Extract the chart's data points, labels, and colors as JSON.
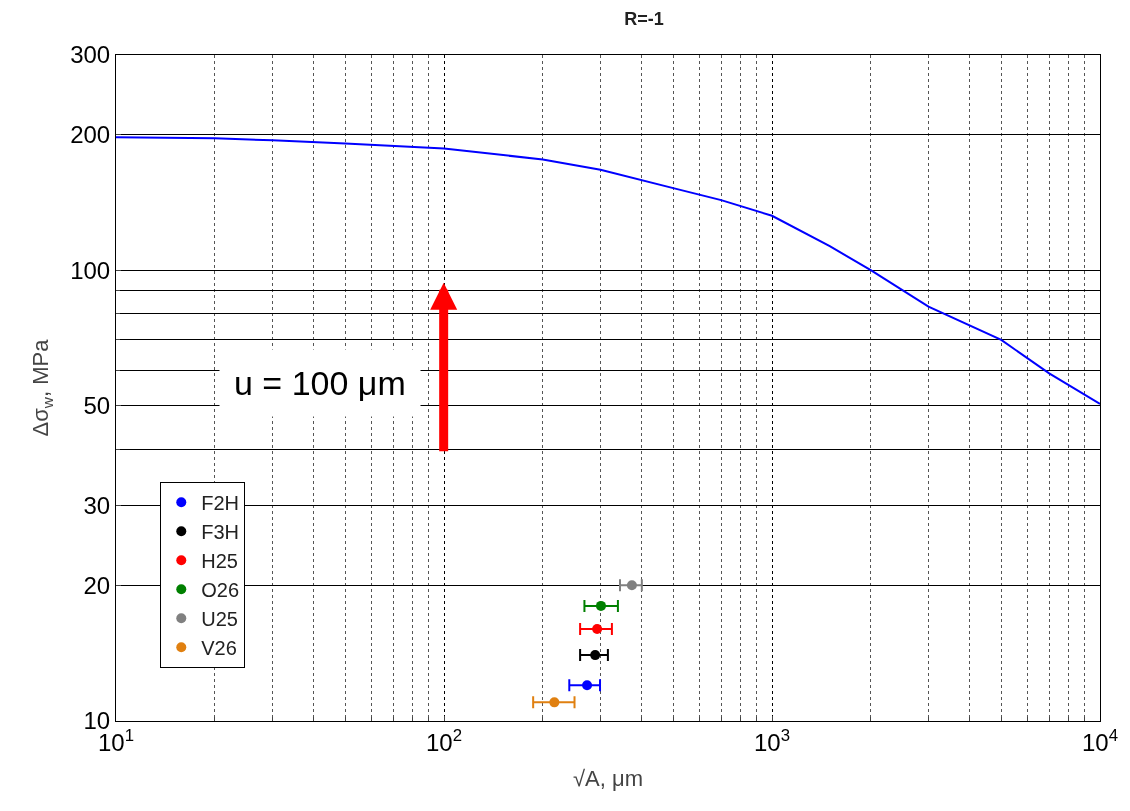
{
  "chart_data": {
    "type": "scatter",
    "title": "R=-1",
    "xlabel": "√A, μm",
    "ylabel": "Δσ$_{w}$, MPa",
    "log": "xy",
    "grid": true,
    "legend": "bottom left",
    "xlim": [
      10,
      10000
    ],
    "ylim": [
      10,
      300
    ],
    "xticks": [
      {
        "value": 10,
        "label": "10$^{1}$"
      },
      {
        "value": 100,
        "label": "10$^{2}$"
      },
      {
        "value": 1000,
        "label": "10$^{3}$"
      },
      {
        "value": 10000,
        "label": "10$^{4}$"
      }
    ],
    "yticks": [
      10,
      20,
      30,
      50,
      100,
      200,
      300
    ],
    "annotations": [
      "u = 100 μm"
    ],
    "series": [
      {
        "type": "line",
        "color": "#0000ff",
        "x": [
          10,
          20,
          30,
          50,
          100,
          200,
          300,
          500,
          700,
          1000,
          1500,
          2000,
          3000,
          5000,
          7000,
          10000
        ],
        "values": [
          197,
          196,
          194,
          191,
          186,
          176,
          167,
          152,
          143,
          132,
          113,
          100,
          83,
          70,
          59,
          50.5
        ]
      },
      {
        "name": "F2H",
        "color": "#0000ff",
        "marker": "circle",
        "x": [
          273
        ],
        "values": [
          12
        ],
        "xerrors": [
          [
            241,
            299
          ]
        ]
      },
      {
        "name": "F3H",
        "color": "#000000",
        "marker": "circle",
        "x": [
          289
        ],
        "values": [
          14
        ],
        "xerrors": [
          [
            260,
            316
          ]
        ]
      },
      {
        "name": "H25",
        "color": "#ff0000",
        "marker": "circle",
        "x": [
          293
        ],
        "values": [
          16
        ],
        "xerrors": [
          [
            260,
            325
          ]
        ]
      },
      {
        "name": "O26",
        "color": "#008000",
        "marker": "circle",
        "x": [
          301
        ],
        "values": [
          18
        ],
        "xerrors": [
          [
            268,
            339
          ]
        ]
      },
      {
        "name": "U25",
        "color": "#808080",
        "marker": "circle",
        "x": [
          374
        ],
        "values": [
          20
        ],
        "xerrors": [
          [
            344,
            401
          ]
        ]
      },
      {
        "name": "V26",
        "color": "#e08010",
        "marker": "circle",
        "x": [
          217
        ],
        "values": [
          11
        ],
        "xerrors": [
          [
            187,
            250
          ]
        ]
      }
    ]
  }
}
